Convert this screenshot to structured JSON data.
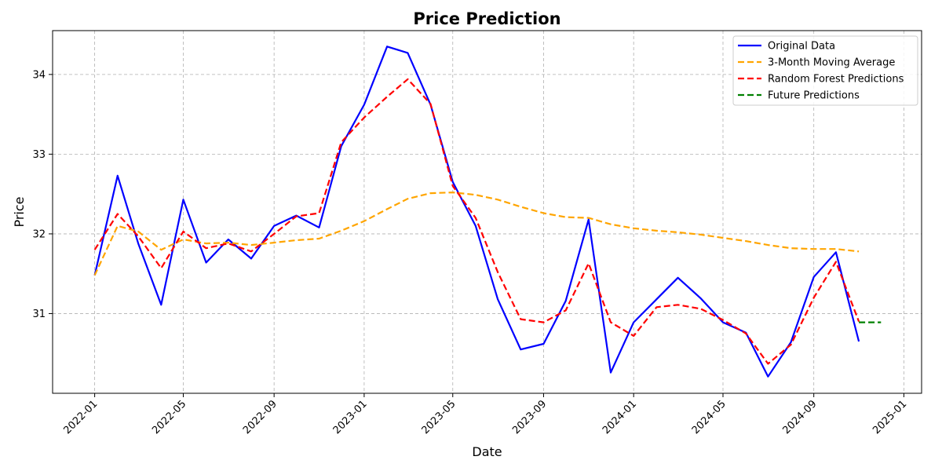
{
  "chart_data": {
    "type": "line",
    "title": "Price Prediction",
    "xlabel": "Date",
    "ylabel": "Price",
    "x_axis_type": "date",
    "xlim": [
      "2021-11-05",
      "2025-01-25"
    ],
    "ylim": [
      30.0,
      34.55
    ],
    "x_ticks": [
      "2022-01",
      "2022-05",
      "2022-09",
      "2023-01",
      "2023-05",
      "2023-09",
      "2024-01",
      "2024-05",
      "2024-09",
      "2025-01"
    ],
    "x_tick_rotation": 45,
    "y_ticks": [
      31,
      32,
      33,
      34
    ],
    "grid": true,
    "legend_position": "top-right",
    "series": [
      {
        "name": "Original Data",
        "color": "#0000ff",
        "dash": "solid",
        "x": [
          "2022-01-01",
          "2022-02-01",
          "2022-03-01",
          "2022-04-01",
          "2022-05-01",
          "2022-06-01",
          "2022-07-01",
          "2022-08-01",
          "2022-09-01",
          "2022-10-01",
          "2022-11-01",
          "2022-12-01",
          "2023-01-01",
          "2023-02-01",
          "2023-03-01",
          "2023-04-01",
          "2023-05-01",
          "2023-06-01",
          "2023-07-01",
          "2023-08-01",
          "2023-09-01",
          "2023-10-01",
          "2023-11-01",
          "2023-12-01",
          "2024-01-01",
          "2024-02-01",
          "2024-03-01",
          "2024-04-01",
          "2024-05-01",
          "2024-06-01",
          "2024-07-01",
          "2024-08-01",
          "2024-09-01",
          "2024-10-01",
          "2024-11-01"
        ],
        "values": [
          31.48,
          32.73,
          31.88,
          31.11,
          32.43,
          31.64,
          31.93,
          31.69,
          32.1,
          32.23,
          32.08,
          33.1,
          33.62,
          34.35,
          34.27,
          33.62,
          32.65,
          32.1,
          31.18,
          30.55,
          30.62,
          31.16,
          32.18,
          30.26,
          30.89,
          31.18,
          31.45,
          31.19,
          30.89,
          30.76,
          30.21,
          30.64,
          31.46,
          31.77,
          30.65
        ]
      },
      {
        "name": "3-Month Moving Average",
        "color": "#ffa500",
        "dash": "dashed",
        "x": [
          "2022-01-01",
          "2022-02-01",
          "2022-03-01",
          "2022-04-01",
          "2022-05-01",
          "2022-06-01",
          "2022-07-01",
          "2022-08-01",
          "2022-09-01",
          "2022-10-01",
          "2022-11-01",
          "2022-12-01",
          "2023-01-01",
          "2023-02-01",
          "2023-03-01",
          "2023-04-01",
          "2023-05-01",
          "2023-06-01",
          "2023-07-01",
          "2023-08-01",
          "2023-09-01",
          "2023-10-01",
          "2023-11-01",
          "2023-12-01",
          "2024-01-01",
          "2024-02-01",
          "2024-03-01",
          "2024-04-01",
          "2024-05-01",
          "2024-06-01",
          "2024-07-01",
          "2024-08-01",
          "2024-09-01",
          "2024-10-01",
          "2024-11-01"
        ],
        "values": [
          31.48,
          32.1,
          32.03,
          31.8,
          31.93,
          31.88,
          31.89,
          31.86,
          31.89,
          31.92,
          31.94,
          32.04,
          32.16,
          32.31,
          32.44,
          32.51,
          32.52,
          32.49,
          32.43,
          32.34,
          32.26,
          32.21,
          32.2,
          32.12,
          32.07,
          32.04,
          32.02,
          31.99,
          31.95,
          31.91,
          31.86,
          31.82,
          31.81,
          31.81,
          31.78
        ]
      },
      {
        "name": "Random Forest Predictions",
        "color": "#ff0000",
        "dash": "dashed",
        "x": [
          "2022-01-01",
          "2022-02-01",
          "2022-03-01",
          "2022-04-01",
          "2022-05-01",
          "2022-06-01",
          "2022-07-01",
          "2022-08-01",
          "2022-09-01",
          "2022-10-01",
          "2022-11-01",
          "2022-12-01",
          "2023-01-01",
          "2023-02-01",
          "2023-03-01",
          "2023-04-01",
          "2023-05-01",
          "2023-06-01",
          "2023-07-01",
          "2023-08-01",
          "2023-09-01",
          "2023-10-01",
          "2023-11-01",
          "2023-12-01",
          "2024-01-01",
          "2024-02-01",
          "2024-03-01",
          "2024-04-01",
          "2024-05-01",
          "2024-06-01",
          "2024-07-01",
          "2024-08-01",
          "2024-09-01",
          "2024-10-01",
          "2024-11-01"
        ],
        "values": [
          31.8,
          32.25,
          31.97,
          31.57,
          32.03,
          31.82,
          31.88,
          31.78,
          32.0,
          32.22,
          32.26,
          33.15,
          33.46,
          33.72,
          33.94,
          33.63,
          32.6,
          32.2,
          31.52,
          30.93,
          30.89,
          31.04,
          31.63,
          30.89,
          30.72,
          31.08,
          31.11,
          31.06,
          30.92,
          30.75,
          30.37,
          30.61,
          31.2,
          31.65,
          30.9
        ]
      },
      {
        "name": "Future Predictions",
        "color": "#008000",
        "dash": "dashed",
        "x": [
          "2024-11-01",
          "2024-12-01"
        ],
        "values": [
          30.89,
          30.89
        ]
      }
    ]
  }
}
